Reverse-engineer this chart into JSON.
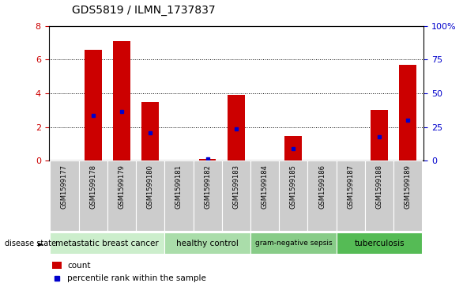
{
  "title": "GDS5819 / ILMN_1737837",
  "samples": [
    "GSM1599177",
    "GSM1599178",
    "GSM1599179",
    "GSM1599180",
    "GSM1599181",
    "GSM1599182",
    "GSM1599183",
    "GSM1599184",
    "GSM1599185",
    "GSM1599186",
    "GSM1599187",
    "GSM1599188",
    "GSM1599189"
  ],
  "counts": [
    0.0,
    6.6,
    7.1,
    3.5,
    0.0,
    0.12,
    3.9,
    0.0,
    1.45,
    0.0,
    0.0,
    3.0,
    5.7
  ],
  "percentiles_scaled": [
    0.0,
    2.7,
    2.9,
    1.65,
    0.0,
    0.12,
    1.9,
    0.0,
    0.7,
    0.0,
    0.0,
    1.4,
    2.4
  ],
  "groups": [
    {
      "label": "metastatic breast cancer",
      "start": 0,
      "end": 3,
      "color": "#cceecc"
    },
    {
      "label": "healthy control",
      "start": 4,
      "end": 6,
      "color": "#aaddaa"
    },
    {
      "label": "gram-negative sepsis",
      "start": 7,
      "end": 9,
      "color": "#88cc88"
    },
    {
      "label": "tuberculosis",
      "start": 10,
      "end": 12,
      "color": "#55bb55"
    }
  ],
  "ylim_left": [
    0,
    8
  ],
  "ylim_right": [
    0,
    100
  ],
  "yticks_left": [
    0,
    2,
    4,
    6,
    8
  ],
  "yticks_right": [
    0,
    25,
    50,
    75,
    100
  ],
  "yticklabels_right": [
    "0",
    "25",
    "50",
    "75",
    "100%"
  ],
  "bar_color": "#cc0000",
  "dot_color": "#0000cc",
  "tick_color_left": "#cc0000",
  "tick_color_right": "#0000cc",
  "sample_bg": "#cccccc",
  "disease_state_label": "disease state"
}
